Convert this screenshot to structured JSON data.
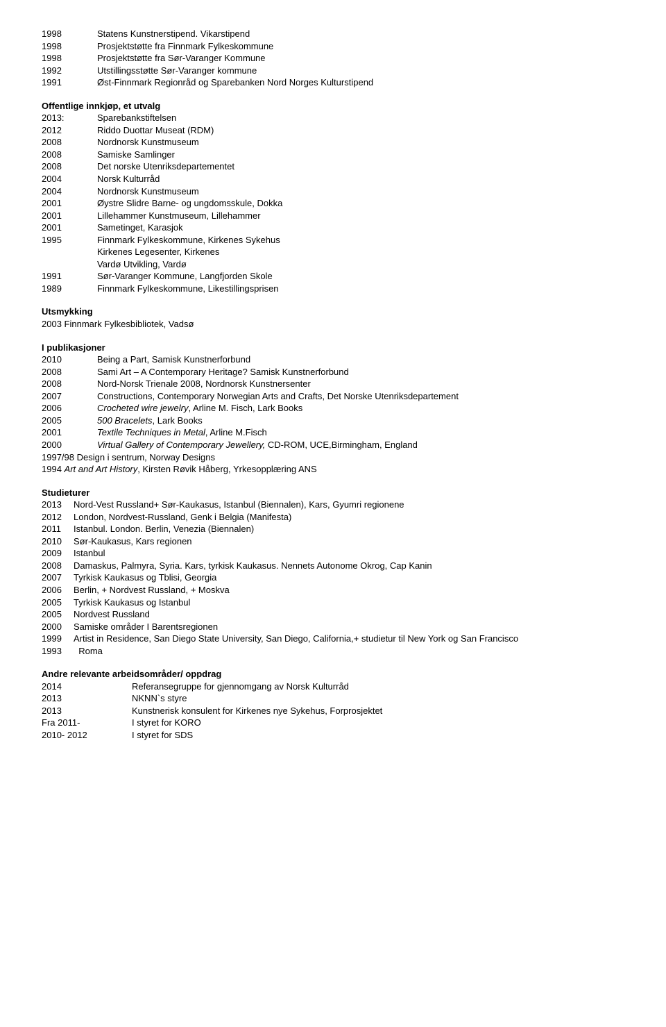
{
  "top_rows": [
    {
      "year": "1998",
      "text": "Statens Kunstnerstipend. Vikarstipend"
    },
    {
      "year": "1998",
      "text": "Prosjektstøtte fra Finnmark Fylkeskommune"
    },
    {
      "year": "1998",
      "text": "Prosjektstøtte fra Sør-Varanger Kommune"
    },
    {
      "year": "1992",
      "text": "Utstillingsstøtte Sør-Varanger kommune"
    },
    {
      "year": "1991",
      "text": "Øst-Finnmark Regionråd og Sparebanken Nord Norges Kulturstipend"
    }
  ],
  "sections": {
    "offentlige": {
      "title": "Offentlige innkjøp, et utvalg",
      "rows": [
        {
          "year": "2013:",
          "text": "Sparebankstiftelsen"
        },
        {
          "year": "2012",
          "text": "Riddo Duottar Museat (RDM)"
        },
        {
          "year": "2008",
          "text": "Nordnorsk Kunstmuseum"
        },
        {
          "year": "2008",
          "text": "Samiske Samlinger"
        },
        {
          "year": "2008",
          "text": "Det norske Utenriksdepartementet"
        },
        {
          "year": "2004",
          "text": "Norsk Kulturråd"
        },
        {
          "year": "2004",
          "text": "Nordnorsk Kunstmuseum"
        },
        {
          "year": "2001",
          "text": "Øystre Slidre Barne- og ungdomsskule, Dokka"
        },
        {
          "year": "2001",
          "text": "Lillehammer Kunstmuseum, Lillehammer"
        },
        {
          "year": "2001",
          "text": "Sametinget, Karasjok"
        },
        {
          "year": "1995",
          "text": "Finnmark Fylkeskommune, Kirkenes Sykehus"
        },
        {
          "year": "",
          "text": "Kirkenes Legesenter, Kirkenes"
        },
        {
          "year": "",
          "text": "Vardø Utvikling, Vardø"
        },
        {
          "year": "1991",
          "text": "Sør-Varanger Kommune, Langfjorden Skole"
        },
        {
          "year": "1989",
          "text": "Finnmark Fylkeskommune, Likestillingsprisen"
        }
      ]
    },
    "utsmykking": {
      "title": "Utsmykking",
      "line": "2003 Finnmark Fylkesbibliotek, Vadsø"
    },
    "ipub": {
      "title": "I publikasjoner",
      "rows": [
        {
          "year": "2010",
          "text": "Being a Part, Samisk Kunstnerforbund"
        },
        {
          "year": "2008",
          "text": "Sami Art – A Contemporary Heritage? Samisk Kunstnerforbund"
        },
        {
          "year": "2008",
          "text": "Nord-Norsk Trienale 2008, Nordnorsk Kunstnersenter"
        },
        {
          "year": "2007",
          "text": "Constructions, Contemporary Norwegian Arts and  Crafts, Det Norske Utenriksdepartement"
        }
      ],
      "rows_italic": [
        {
          "year": "2006",
          "italic": "Crocheted wire jewelry",
          "rest": ", Arline M. Fisch, Lark Books"
        },
        {
          "year": "2005",
          "italic": "500 Bracelets",
          "rest": ", Lark Books"
        },
        {
          "year": "2001",
          "italic": "Textile Techniques in Metal",
          "rest": ", Arline M.Fisch"
        },
        {
          "year": "2000",
          "italic": "Virtual Gallery of Contemporary Jewellery, ",
          "rest": "CD-ROM, UCE,Birmingham, England"
        }
      ],
      "tail": [
        "1997/98 Design i sentrum, Norway Designs"
      ],
      "tail_italic": {
        "year": "1994    ",
        "italic": "Art and Art History",
        "rest": ", Kirsten Røvik Håberg, Yrkesopplæring ANS"
      }
    },
    "studieturer": {
      "title": "Studieturer",
      "rows": [
        {
          "year": "2013",
          "text": "Nord-Vest Russland+ Sør-Kaukasus, Istanbul (Biennalen), Kars, Gyumri regionene"
        },
        {
          "year": "2012",
          "text": "London, Nordvest-Russland, Genk i Belgia (Manifesta)"
        },
        {
          "year": "2011",
          "text": "Istanbul. London. Berlin, Venezia (Biennalen)"
        },
        {
          "year": "2010",
          "text": "Sør-Kaukasus, Kars regionen"
        },
        {
          "year": "2009",
          "text": "Istanbul"
        },
        {
          "year": "2008",
          "text": "Damaskus, Palmyra, Syria. Kars, tyrkisk Kaukasus. Nennets Autonome Okrog, Cap Kanin"
        },
        {
          "year": "2007",
          "text": "Tyrkisk Kaukasus og Tblisi, Georgia"
        },
        {
          "year": "2006",
          "text": "Berlin, + Nordvest Russland, + Moskva"
        },
        {
          "year": "2005",
          "text": "Tyrkisk Kaukasus og Istanbul"
        },
        {
          "year": "2005",
          "text": "Nordvest Russland"
        },
        {
          "year": "2000",
          "text": "Samiske områder I Barentsregionen"
        },
        {
          "year": "1999",
          "text": "Artist in Residence, San Diego State University, San Diego, California,+ studietur til New York og San Francisco"
        },
        {
          "year": "1993",
          "text": "  Roma"
        }
      ]
    },
    "andre": {
      "title": "Andre relevante arbeidsområder/ oppdrag",
      "rows": [
        {
          "year": "2014",
          "text": "Referansegruppe for gjennomgang av Norsk Kulturråd"
        },
        {
          "year": "2013",
          "text": "NKNN`s styre"
        },
        {
          "year": "2013",
          "text": "Kunstnerisk konsulent for Kirkenes nye Sykehus, Forprosjektet"
        },
        {
          "year": "Fra 2011-",
          "text": "I styret for KORO"
        },
        {
          "year": "2010- 2012",
          "text": "I styret for SDS"
        }
      ]
    }
  }
}
